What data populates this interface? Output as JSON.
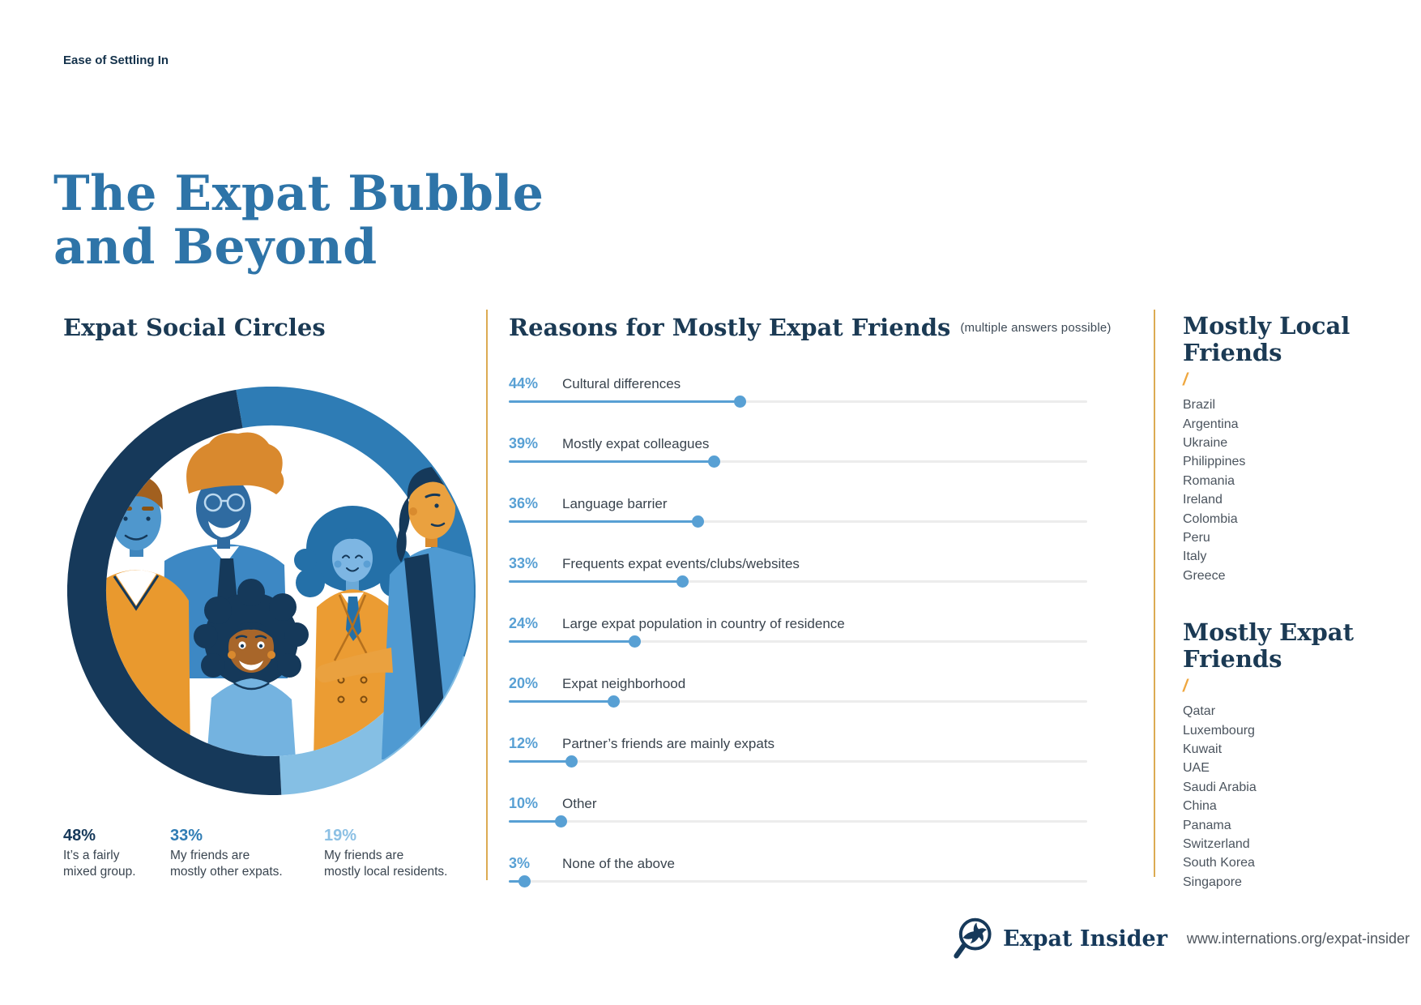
{
  "eyebrow": "Ease of Settling In",
  "title": {
    "line1": "The Expat Bubble",
    "line2": "and Beyond"
  },
  "colors": {
    "title_blue": "#2e74a8",
    "heading_navy": "#1b3a54",
    "accent_orange": "#dcab52",
    "slash_orange": "#efa73f",
    "bar_blue": "#58a0d4",
    "track_gray": "#ececec"
  },
  "social_circles": {
    "heading": "Expat Social Circles",
    "stats": [
      {
        "pct": "48%",
        "text_line1": "It’s a fairly",
        "text_line2": "mixed group.",
        "color": "#16395a"
      },
      {
        "pct": "33%",
        "text_line1": "My friends are",
        "text_line2": "mostly other expats.",
        "color": "#2f7cb4"
      },
      {
        "pct": "19%",
        "text_line1": "My friends are",
        "text_line2": "mostly local residents.",
        "color": "#8cc0e4"
      }
    ]
  },
  "reasons": {
    "heading": "Reasons for Mostly Expat Friends",
    "note": "(multiple answers possible)",
    "rows": [
      {
        "pct_label": "44%",
        "label": "Cultural differences"
      },
      {
        "pct_label": "39%",
        "label": "Mostly expat colleagues"
      },
      {
        "pct_label": "36%",
        "label": "Language barrier"
      },
      {
        "pct_label": "33%",
        "label": "Frequents expat events/clubs/websites"
      },
      {
        "pct_label": "24%",
        "label": "Large expat population in country of residence"
      },
      {
        "pct_label": "20%",
        "label": "Expat neighborhood"
      },
      {
        "pct_label": "12%",
        "label": "Partner’s friends are mainly expats"
      },
      {
        "pct_label": "10%",
        "label": "Other"
      },
      {
        "pct_label": "3%",
        "label": "None of the above"
      }
    ]
  },
  "lists": [
    {
      "heading": "Mostly Local Friends",
      "slash": "/",
      "items": [
        "Brazil",
        "Argentina",
        "Ukraine",
        "Philippines",
        "Romania",
        "Ireland",
        "Colombia",
        "Peru",
        "Italy",
        "Greece"
      ]
    },
    {
      "heading": "Mostly Expat Friends",
      "slash": "/",
      "items": [
        "Qatar",
        "Luxembourg",
        "Kuwait",
        "UAE",
        "Saudi Arabia",
        "China",
        "Panama",
        "Switzerland",
        "South Korea",
        "Singapore"
      ]
    }
  ],
  "footer": {
    "brand": "Expat Insider",
    "url": "www.internations.org/expat-insider"
  },
  "chart_data": [
    {
      "type": "pie",
      "style": "donut",
      "title": "Expat Social Circles",
      "labels": [
        "It’s a fairly mixed group.",
        "My friends are mostly other expats.",
        "My friends are mostly local residents."
      ],
      "values": [
        48,
        33,
        19
      ],
      "unit": "%",
      "colors": [
        "#16395a",
        "#2e7cb5",
        "#85bfe4"
      ],
      "legend_position": "below"
    },
    {
      "type": "bar",
      "orientation": "horizontal",
      "title": "Reasons for Mostly Expat Friends",
      "subtitle": "(multiple answers possible)",
      "categories": [
        "Cultural differences",
        "Mostly expat colleagues",
        "Language barrier",
        "Frequents expat events/clubs/websites",
        "Large expat population in country of residence",
        "Expat neighborhood",
        "Partner’s friends are mainly expats",
        "Other",
        "None of the above"
      ],
      "values": [
        44,
        39,
        36,
        33,
        24,
        20,
        12,
        10,
        3
      ],
      "unit": "%",
      "xlim": [
        0,
        110
      ],
      "grid": false,
      "legend": "none"
    }
  ]
}
